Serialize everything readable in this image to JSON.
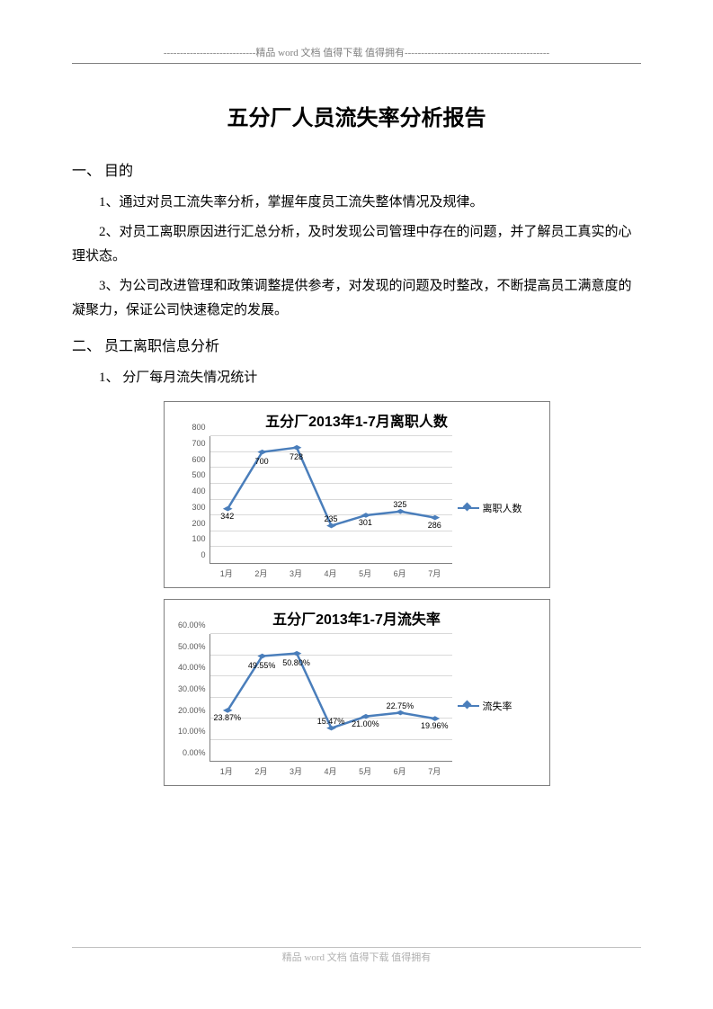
{
  "header": {
    "text": "----------------------------精品 word 文档 值得下载 值得拥有--------------------------------------------"
  },
  "footer": {
    "text": "精品 word 文档 值得下载 值得拥有"
  },
  "title": "五分厂人员流失率分析报告",
  "section1": {
    "heading": "一、 目的",
    "p1": "1、通过对员工流失率分析，掌握年度员工流失整体情况及规律。",
    "p2": "2、对员工离职原因进行汇总分析，及时发现公司管理中存在的问题，并了解员工真实的心理状态。",
    "p3": "3、为公司改进管理和政策调整提供参考，对发现的问题及时整改，不断提高员工满意度的凝聚力，保证公司快速稳定的发展。"
  },
  "section2": {
    "heading": "二、 员工离职信息分析",
    "p1": "1、 分厂每月流失情况统计"
  },
  "chart1": {
    "type": "line",
    "title": "五分厂2013年1-7月离职人数",
    "legend": "离职人数",
    "categories": [
      "1月",
      "2月",
      "3月",
      "4月",
      "5月",
      "6月",
      "7月"
    ],
    "values": [
      342,
      700,
      728,
      235,
      301,
      325,
      286
    ],
    "data_labels": [
      "342",
      "700",
      "728",
      "235",
      "301",
      "325",
      "286"
    ],
    "ylim": [
      0,
      800
    ],
    "ytick_step": 100,
    "yticks": [
      "0",
      "100",
      "200",
      "300",
      "400",
      "500",
      "600",
      "700",
      "800"
    ],
    "line_color": "#4a7ebb",
    "marker_color": "#4a7ebb",
    "grid_color": "#d9d9d9",
    "background_color": "#ffffff",
    "title_fontsize": 16
  },
  "chart2": {
    "type": "line",
    "title": "五分厂2013年1-7月流失率",
    "legend": "流失率",
    "categories": [
      "1月",
      "2月",
      "3月",
      "4月",
      "5月",
      "6月",
      "7月"
    ],
    "values": [
      23.87,
      49.55,
      50.8,
      15.47,
      21.0,
      22.75,
      19.96
    ],
    "data_labels": [
      "23.87%",
      "49.55%",
      "50.80%",
      "15.47%",
      "21.00%",
      "22.75%",
      "19.96%"
    ],
    "ylim": [
      0,
      60
    ],
    "ytick_step": 10,
    "yticks": [
      "0.00%",
      "10.00%",
      "20.00%",
      "30.00%",
      "40.00%",
      "50.00%",
      "60.00%"
    ],
    "line_color": "#4a7ebb",
    "marker_color": "#4a7ebb",
    "grid_color": "#d9d9d9",
    "background_color": "#ffffff",
    "title_fontsize": 16
  }
}
